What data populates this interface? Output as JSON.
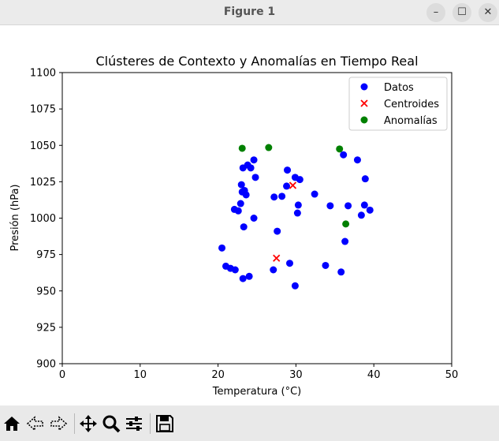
{
  "window": {
    "title": "Figure 1",
    "controls": {
      "minimize": "–",
      "maximize": "☐",
      "close": "✕"
    }
  },
  "toolbar": {
    "icons": [
      "home-icon",
      "back-icon",
      "forward-icon",
      "pan-icon",
      "zoom-icon",
      "configure-subplots-icon",
      "save-icon"
    ]
  },
  "colors": {
    "datos": "#0000ff",
    "centroides": "#ff0000",
    "anomalias": "#008000"
  },
  "chart_data": {
    "type": "scatter",
    "title": "Clústeres de Contexto y Anomalías en Tiempo Real",
    "xlabel": "Temperatura (°C)",
    "ylabel": "Presión (hPa)",
    "xlim": [
      0,
      50
    ],
    "ylim": [
      900,
      1100
    ],
    "xticks": [
      "0",
      "10",
      "20",
      "30",
      "40",
      "50"
    ],
    "yticks": [
      "900",
      "925",
      "950",
      "975",
      "1000",
      "1025",
      "1050",
      "1075",
      "1100"
    ],
    "grid": false,
    "legend_position": "top-right",
    "series": [
      {
        "name": "Datos",
        "marker": "circle",
        "color": "#0000ff",
        "points": [
          [
            20.5,
            979.5
          ],
          [
            21.0,
            967
          ],
          [
            21.6,
            965.5
          ],
          [
            22.2,
            964.5
          ],
          [
            23.2,
            958.5
          ],
          [
            24.0,
            960
          ],
          [
            27.1,
            964.5
          ],
          [
            29.2,
            969
          ],
          [
            29.9,
            953.5
          ],
          [
            33.8,
            967.5
          ],
          [
            35.8,
            963
          ],
          [
            36.3,
            984
          ],
          [
            27.6,
            991
          ],
          [
            23.3,
            994
          ],
          [
            24.6,
            1000
          ],
          [
            22.1,
            1006
          ],
          [
            22.6,
            1005
          ],
          [
            22.9,
            1010
          ],
          [
            23.0,
            1023
          ],
          [
            23.1,
            1018
          ],
          [
            23.6,
            1016
          ],
          [
            23.4,
            1019
          ],
          [
            23.2,
            1034.5
          ],
          [
            23.8,
            1036.5
          ],
          [
            24.2,
            1034.5
          ],
          [
            24.6,
            1040
          ],
          [
            24.8,
            1028
          ],
          [
            27.2,
            1014.5
          ],
          [
            28.2,
            1015
          ],
          [
            28.8,
            1022
          ],
          [
            28.9,
            1033
          ],
          [
            29.9,
            1028
          ],
          [
            30.5,
            1026.5
          ],
          [
            30.3,
            1009
          ],
          [
            30.2,
            1003.5
          ],
          [
            32.4,
            1016.5
          ],
          [
            34.4,
            1008.5
          ],
          [
            36.1,
            1043.5
          ],
          [
            36.7,
            1008.5
          ],
          [
            37.9,
            1040
          ],
          [
            38.4,
            1002
          ],
          [
            38.8,
            1009
          ],
          [
            38.9,
            1027
          ],
          [
            39.5,
            1005.5
          ]
        ]
      },
      {
        "name": "Centroides",
        "marker": "x",
        "color": "#ff0000",
        "points": [
          [
            29.6,
            1022.5
          ],
          [
            27.5,
            972.5
          ]
        ]
      },
      {
        "name": "Anomalías",
        "marker": "circle",
        "color": "#008000",
        "points": [
          [
            23.1,
            1048
          ],
          [
            26.5,
            1048.5
          ],
          [
            35.6,
            1047.5
          ],
          [
            36.4,
            996
          ]
        ]
      }
    ]
  }
}
